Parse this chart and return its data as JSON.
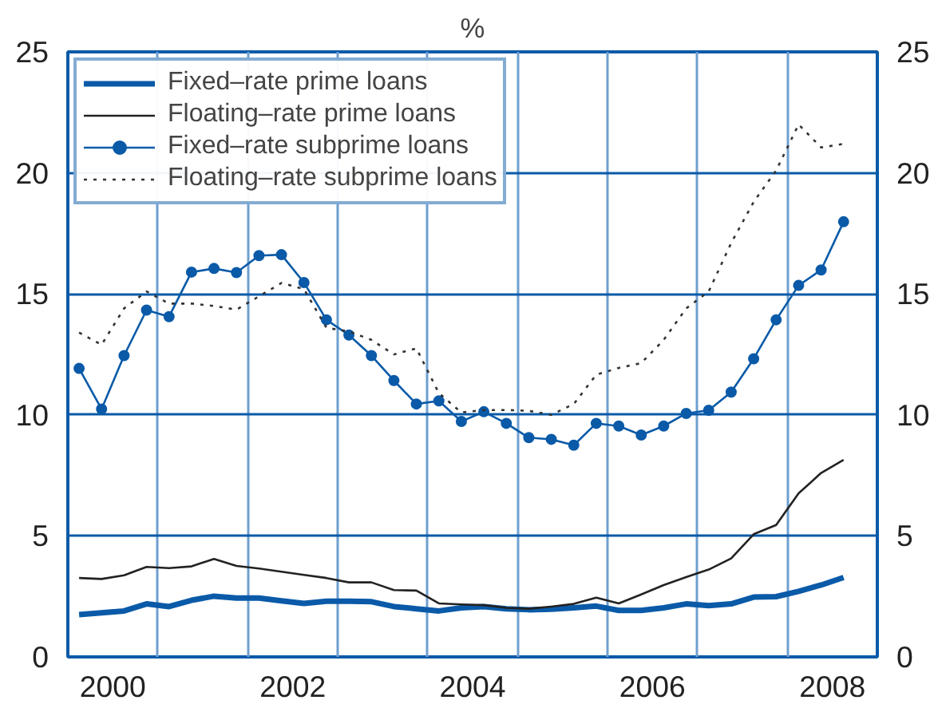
{
  "chart_data": {
    "type": "line",
    "title": "%",
    "x": [
      2000.125,
      2000.375,
      2000.625,
      2000.875,
      2001.125,
      2001.375,
      2001.625,
      2001.875,
      2002.125,
      2002.375,
      2002.625,
      2002.875,
      2003.125,
      2003.375,
      2003.625,
      2003.875,
      2004.125,
      2004.375,
      2004.625,
      2004.875,
      2005.125,
      2005.375,
      2005.625,
      2005.875,
      2006.125,
      2006.375,
      2006.625,
      2006.875,
      2007.125,
      2007.375,
      2007.625,
      2007.875,
      2008.125,
      2008.375,
      2008.625
    ],
    "series": [
      {
        "name": "Fixed–rate prime loans",
        "color": "#0a5aa8",
        "line_style": "solid",
        "marker": "none",
        "values": [
          1.75,
          1.82,
          1.9,
          2.19,
          2.08,
          2.34,
          2.51,
          2.43,
          2.43,
          2.32,
          2.21,
          2.3,
          2.3,
          2.28,
          2.08,
          1.99,
          1.9,
          2.03,
          2.08,
          1.99,
          1.95,
          1.97,
          2.03,
          2.1,
          1.92,
          1.92,
          2.03,
          2.19,
          2.12,
          2.19,
          2.47,
          2.49,
          2.71,
          2.97,
          3.28
        ]
      },
      {
        "name": "Floating–rate prime loans",
        "color": "#222222",
        "line_style": "solid",
        "marker": "none",
        "values": [
          3.26,
          3.22,
          3.37,
          3.72,
          3.67,
          3.74,
          4.05,
          3.76,
          3.65,
          3.52,
          3.39,
          3.26,
          3.08,
          3.08,
          2.76,
          2.74,
          2.21,
          2.17,
          2.14,
          2.03,
          1.99,
          2.08,
          2.19,
          2.45,
          2.21,
          2.58,
          2.97,
          3.3,
          3.61,
          4.07,
          5.07,
          5.45,
          6.76,
          7.6,
          8.14
        ]
      },
      {
        "name": "Fixed–rate subprime loans",
        "color": "#0a5aa8",
        "line_style": "solid",
        "marker": "circle",
        "values": [
          11.92,
          10.24,
          12.45,
          14.33,
          14.06,
          15.9,
          16.05,
          15.88,
          16.58,
          16.62,
          15.47,
          13.93,
          13.3,
          12.45,
          11.42,
          10.45,
          10.58,
          9.73,
          10.13,
          9.65,
          9.06,
          8.99,
          8.75,
          9.65,
          9.54,
          9.17,
          9.54,
          10.06,
          10.19,
          10.94,
          12.32,
          13.93,
          15.35,
          15.99,
          17.98
        ]
      },
      {
        "name": "Floating–rate subprime loans",
        "color": "#333333",
        "line_style": "dotted",
        "marker": "none",
        "values": [
          13.4,
          12.9,
          14.4,
          15.1,
          14.6,
          14.6,
          14.5,
          14.35,
          14.9,
          15.45,
          15.2,
          13.6,
          13.45,
          13.1,
          12.5,
          12.75,
          10.9,
          10.1,
          10.2,
          10.2,
          10.17,
          10.0,
          10.45,
          11.66,
          11.94,
          12.14,
          13.1,
          14.4,
          15.1,
          17.1,
          18.8,
          20.1,
          22.0,
          21.05,
          21.2
        ]
      }
    ],
    "xlim": [
      2000,
      2009
    ],
    "xticks": [
      {
        "value": 2000.5,
        "label": "2000"
      },
      {
        "value": 2001,
        "label": null
      },
      {
        "value": 2002,
        "label": null
      },
      {
        "value": 2002.5,
        "label": "2002"
      },
      {
        "value": 2003,
        "label": null
      },
      {
        "value": 2004,
        "label": null
      },
      {
        "value": 2004.5,
        "label": "2004"
      },
      {
        "value": 2005,
        "label": null
      },
      {
        "value": 2006,
        "label": null
      },
      {
        "value": 2006.5,
        "label": "2006"
      },
      {
        "value": 2007,
        "label": null
      },
      {
        "value": 2008,
        "label": null
      },
      {
        "value": 2008.5,
        "label": "2008"
      }
    ],
    "ylim": [
      0,
      25
    ],
    "yticks": [
      0,
      5,
      10,
      15,
      20,
      25
    ],
    "y2lim": [
      0,
      25
    ],
    "y2ticks": [
      0,
      5,
      10,
      15,
      20,
      25
    ],
    "grid": true,
    "legend": "top left"
  }
}
